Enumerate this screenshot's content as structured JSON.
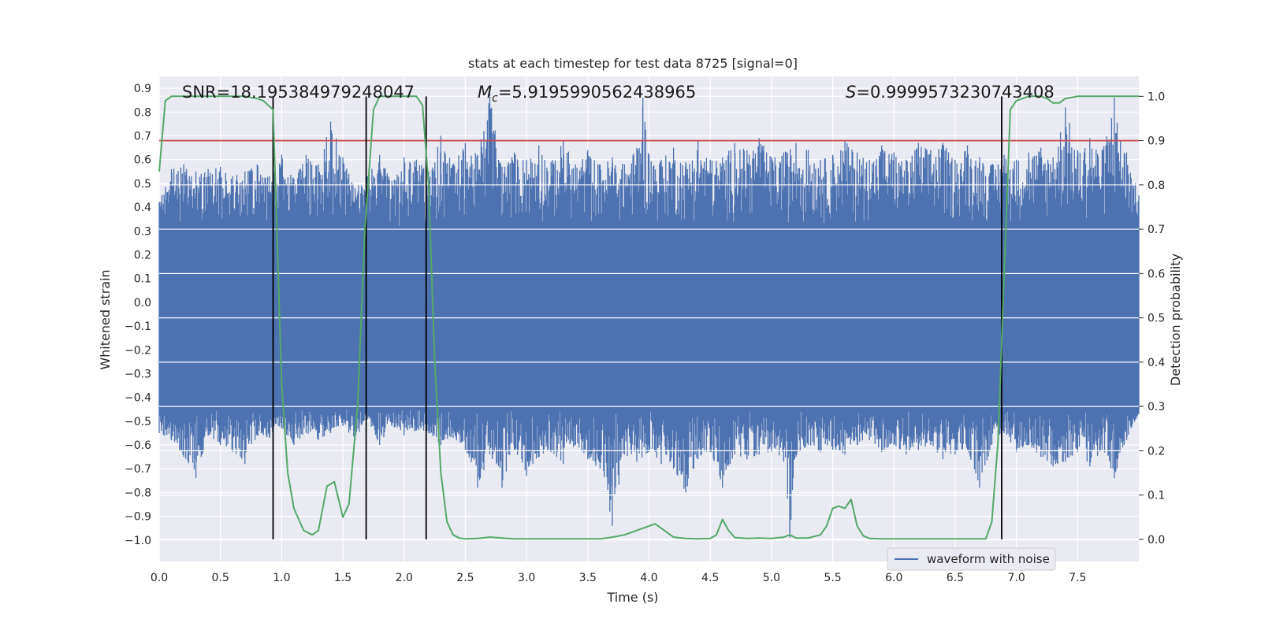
{
  "chart_data": {
    "type": "line",
    "title": "stats at each timestep for test data 8725 [signal=0]",
    "xlabel": "Time (s)",
    "ylabel": "Whitened strain",
    "ylabel_right": "Detection probability",
    "xlim": [
      0,
      8.0
    ],
    "ylim": [
      -1.09,
      0.95
    ],
    "ylim_right": [
      -0.05,
      1.045
    ],
    "xticks": [
      0.0,
      0.5,
      1.0,
      1.5,
      2.0,
      2.5,
      3.0,
      3.5,
      4.0,
      4.5,
      5.0,
      5.5,
      6.0,
      6.5,
      7.0,
      7.5
    ],
    "xtick_labels": [
      "0.0",
      "0.5",
      "1.0",
      "1.5",
      "2.0",
      "2.5",
      "3.0",
      "3.5",
      "4.0",
      "4.5",
      "5.0",
      "5.5",
      "6.0",
      "6.5",
      "7.0",
      "7.5"
    ],
    "yticks": [
      -1.0,
      -0.9,
      -0.8,
      -0.7,
      -0.6,
      -0.5,
      -0.4,
      -0.3,
      -0.2,
      -0.1,
      0.0,
      0.1,
      0.2,
      0.3,
      0.4,
      0.5,
      0.6,
      0.7,
      0.8,
      0.9
    ],
    "ytick_labels": [
      "−1.0",
      "−0.9",
      "−0.8",
      "−0.7",
      "−0.6",
      "−0.5",
      "−0.4",
      "−0.3",
      "−0.2",
      "−0.1",
      "0.0",
      "0.1",
      "0.2",
      "0.3",
      "0.4",
      "0.5",
      "0.6",
      "0.7",
      "0.8",
      "0.9"
    ],
    "yticks_right": [
      0.0,
      0.1,
      0.2,
      0.3,
      0.4,
      0.5,
      0.6,
      0.7,
      0.8,
      0.9,
      1.0
    ],
    "ytick_labels_right": [
      "0.0",
      "0.1",
      "0.2",
      "0.3",
      "0.4",
      "0.5",
      "0.6",
      "0.7",
      "0.8",
      "0.9",
      "1.0"
    ],
    "annotations": {
      "snr": "SNR=18.195384979248047",
      "mc_symbol": "M",
      "mc_subscript": "c",
      "mc_value": "=5.9195990562438965",
      "s_symbol": "S",
      "s_value": "=0.9999573230743408"
    },
    "legend": {
      "label": "waveform with noise",
      "placement": "lower-right"
    },
    "threshold_right": 0.9,
    "vertical_lines_x": [
      0.93,
      1.69,
      2.18,
      6.88
    ],
    "waveform": {
      "name": "waveform with noise",
      "envelope_upper": [
        [
          0.0,
          0.42
        ],
        [
          0.1,
          0.56
        ],
        [
          0.2,
          0.58
        ],
        [
          0.3,
          0.55
        ],
        [
          0.4,
          0.56
        ],
        [
          0.5,
          0.57
        ],
        [
          0.6,
          0.53
        ],
        [
          0.7,
          0.55
        ],
        [
          0.8,
          0.58
        ],
        [
          0.9,
          0.53
        ],
        [
          1.0,
          0.62
        ],
        [
          1.1,
          0.52
        ],
        [
          1.2,
          0.62
        ],
        [
          1.3,
          0.58
        ],
        [
          1.4,
          0.76
        ],
        [
          1.5,
          0.61
        ],
        [
          1.6,
          0.48
        ],
        [
          1.7,
          0.53
        ],
        [
          1.8,
          0.62
        ],
        [
          1.9,
          0.51
        ],
        [
          2.0,
          0.61
        ],
        [
          2.1,
          0.6
        ],
        [
          2.2,
          0.55
        ],
        [
          2.3,
          0.7
        ],
        [
          2.4,
          0.58
        ],
        [
          2.5,
          0.67
        ],
        [
          2.6,
          0.62
        ],
        [
          2.7,
          0.88
        ],
        [
          2.8,
          0.57
        ],
        [
          2.9,
          0.63
        ],
        [
          3.0,
          0.6
        ],
        [
          3.1,
          0.66
        ],
        [
          3.2,
          0.59
        ],
        [
          3.3,
          0.68
        ],
        [
          3.4,
          0.58
        ],
        [
          3.5,
          0.64
        ],
        [
          3.6,
          0.58
        ],
        [
          3.7,
          0.61
        ],
        [
          3.8,
          0.58
        ],
        [
          3.9,
          0.65
        ],
        [
          3.95,
          0.86
        ],
        [
          4.0,
          0.62
        ],
        [
          4.1,
          0.6
        ],
        [
          4.2,
          0.65
        ],
        [
          4.3,
          0.59
        ],
        [
          4.4,
          0.68
        ],
        [
          4.5,
          0.6
        ],
        [
          4.6,
          0.61
        ],
        [
          4.7,
          0.67
        ],
        [
          4.8,
          0.64
        ],
        [
          4.9,
          0.69
        ],
        [
          5.0,
          0.61
        ],
        [
          5.1,
          0.63
        ],
        [
          5.2,
          0.67
        ],
        [
          5.3,
          0.64
        ],
        [
          5.4,
          0.6
        ],
        [
          5.5,
          0.62
        ],
        [
          5.6,
          0.68
        ],
        [
          5.7,
          0.63
        ],
        [
          5.8,
          0.6
        ],
        [
          5.9,
          0.66
        ],
        [
          6.0,
          0.63
        ],
        [
          6.1,
          0.6
        ],
        [
          6.2,
          0.67
        ],
        [
          6.3,
          0.64
        ],
        [
          6.4,
          0.67
        ],
        [
          6.5,
          0.6
        ],
        [
          6.6,
          0.66
        ],
        [
          6.7,
          0.61
        ],
        [
          6.8,
          0.58
        ],
        [
          6.9,
          0.62
        ],
        [
          7.0,
          0.6
        ],
        [
          7.1,
          0.63
        ],
        [
          7.2,
          0.65
        ],
        [
          7.3,
          0.61
        ],
        [
          7.4,
          0.82
        ],
        [
          7.5,
          0.64
        ],
        [
          7.6,
          0.69
        ],
        [
          7.7,
          0.64
        ],
        [
          7.8,
          0.86
        ],
        [
          7.85,
          0.68
        ],
        [
          7.9,
          0.63
        ],
        [
          8.0,
          0.45
        ]
      ],
      "envelope_lower": [
        [
          0.0,
          -0.55
        ],
        [
          0.1,
          -0.58
        ],
        [
          0.2,
          -0.65
        ],
        [
          0.3,
          -0.74
        ],
        [
          0.4,
          -0.56
        ],
        [
          0.5,
          -0.6
        ],
        [
          0.6,
          -0.63
        ],
        [
          0.7,
          -0.68
        ],
        [
          0.8,
          -0.56
        ],
        [
          0.9,
          -0.57
        ],
        [
          1.0,
          -0.53
        ],
        [
          1.1,
          -0.6
        ],
        [
          1.2,
          -0.55
        ],
        [
          1.3,
          -0.58
        ],
        [
          1.4,
          -0.55
        ],
        [
          1.5,
          -0.52
        ],
        [
          1.6,
          -0.58
        ],
        [
          1.7,
          -0.49
        ],
        [
          1.8,
          -0.6
        ],
        [
          1.9,
          -0.52
        ],
        [
          2.0,
          -0.56
        ],
        [
          2.1,
          -0.54
        ],
        [
          2.2,
          -0.55
        ],
        [
          2.3,
          -0.6
        ],
        [
          2.4,
          -0.57
        ],
        [
          2.5,
          -0.62
        ],
        [
          2.6,
          -0.78
        ],
        [
          2.7,
          -0.64
        ],
        [
          2.8,
          -0.78
        ],
        [
          2.9,
          -0.62
        ],
        [
          3.0,
          -0.73
        ],
        [
          3.1,
          -0.65
        ],
        [
          3.2,
          -0.63
        ],
        [
          3.3,
          -0.68
        ],
        [
          3.4,
          -0.6
        ],
        [
          3.5,
          -0.66
        ],
        [
          3.6,
          -0.7
        ],
        [
          3.7,
          -0.94
        ],
        [
          3.8,
          -0.64
        ],
        [
          3.9,
          -0.67
        ],
        [
          4.0,
          -0.63
        ],
        [
          4.1,
          -0.68
        ],
        [
          4.2,
          -0.7
        ],
        [
          4.3,
          -0.8
        ],
        [
          4.4,
          -0.66
        ],
        [
          4.5,
          -0.63
        ],
        [
          4.6,
          -0.78
        ],
        [
          4.7,
          -0.64
        ],
        [
          4.8,
          -0.66
        ],
        [
          4.9,
          -0.64
        ],
        [
          5.0,
          -0.63
        ],
        [
          5.1,
          -0.67
        ],
        [
          5.15,
          -0.99
        ],
        [
          5.2,
          -0.65
        ],
        [
          5.3,
          -0.6
        ],
        [
          5.4,
          -0.63
        ],
        [
          5.5,
          -0.62
        ],
        [
          5.6,
          -0.64
        ],
        [
          5.7,
          -0.6
        ],
        [
          5.8,
          -0.58
        ],
        [
          5.9,
          -0.63
        ],
        [
          6.0,
          -0.6
        ],
        [
          6.1,
          -0.64
        ],
        [
          6.2,
          -0.62
        ],
        [
          6.3,
          -0.6
        ],
        [
          6.4,
          -0.66
        ],
        [
          6.5,
          -0.64
        ],
        [
          6.6,
          -0.62
        ],
        [
          6.7,
          -0.78
        ],
        [
          6.8,
          -0.6
        ],
        [
          6.9,
          -0.55
        ],
        [
          7.0,
          -0.63
        ],
        [
          7.1,
          -0.6
        ],
        [
          7.2,
          -0.65
        ],
        [
          7.3,
          -0.69
        ],
        [
          7.4,
          -0.67
        ],
        [
          7.5,
          -0.63
        ],
        [
          7.6,
          -0.69
        ],
        [
          7.7,
          -0.62
        ],
        [
          7.8,
          -0.74
        ],
        [
          7.9,
          -0.58
        ],
        [
          8.0,
          -0.47
        ]
      ],
      "dense_band": [
        -0.45,
        0.32
      ]
    },
    "detection_probability": {
      "name": "detection probability",
      "x": [
        0.0,
        0.05,
        0.1,
        0.2,
        0.3,
        0.4,
        0.5,
        0.6,
        0.7,
        0.8,
        0.85,
        0.93,
        1.0,
        1.05,
        1.1,
        1.18,
        1.25,
        1.3,
        1.37,
        1.43,
        1.5,
        1.55,
        1.62,
        1.68,
        1.75,
        1.8,
        1.9,
        2.0,
        2.1,
        2.15,
        2.2,
        2.25,
        2.3,
        2.35,
        2.4,
        2.45,
        2.5,
        2.6,
        2.7,
        2.8,
        2.9,
        3.0,
        3.2,
        3.4,
        3.6,
        3.7,
        3.8,
        3.9,
        4.0,
        4.05,
        4.1,
        4.2,
        4.3,
        4.4,
        4.5,
        4.55,
        4.6,
        4.65,
        4.7,
        4.8,
        4.9,
        5.0,
        5.1,
        5.15,
        5.2,
        5.3,
        5.4,
        5.45,
        5.5,
        5.55,
        5.6,
        5.65,
        5.7,
        5.75,
        5.8,
        5.9,
        6.0,
        6.2,
        6.4,
        6.6,
        6.75,
        6.8,
        6.85,
        6.9,
        6.95,
        7.0,
        7.1,
        7.2,
        7.25,
        7.3,
        7.35,
        7.4,
        7.5,
        7.6,
        7.7,
        7.8,
        7.9,
        8.0
      ],
      "y": [
        0.83,
        0.99,
        1.0,
        1.0,
        1.0,
        1.0,
        1.0,
        1.0,
        1.0,
        0.995,
        0.99,
        0.97,
        0.35,
        0.15,
        0.07,
        0.02,
        0.01,
        0.02,
        0.12,
        0.13,
        0.05,
        0.08,
        0.3,
        0.7,
        0.97,
        1.0,
        1.0,
        1.0,
        1.0,
        0.98,
        0.8,
        0.4,
        0.15,
        0.04,
        0.01,
        0.003,
        0.001,
        0.002,
        0.005,
        0.003,
        0.001,
        0.001,
        0.001,
        0.001,
        0.001,
        0.005,
        0.01,
        0.02,
        0.03,
        0.035,
        0.025,
        0.005,
        0.002,
        0.001,
        0.002,
        0.01,
        0.045,
        0.02,
        0.004,
        0.002,
        0.003,
        0.002,
        0.005,
        0.01,
        0.003,
        0.003,
        0.01,
        0.03,
        0.07,
        0.075,
        0.07,
        0.09,
        0.03,
        0.008,
        0.002,
        0.001,
        0.001,
        0.001,
        0.001,
        0.001,
        0.001,
        0.04,
        0.22,
        0.6,
        0.97,
        0.99,
        1.0,
        1.0,
        0.995,
        0.985,
        0.985,
        0.995,
        1.0,
        1.0,
        1.0,
        1.0,
        1.0,
        1.0
      ]
    },
    "colors": {
      "waveform": "#4c72b0",
      "probability": "#55a868",
      "threshold": "#c44e52",
      "vertical_lines": "#000000",
      "plot_background": "#eaeaf2",
      "grid": "#ffffff"
    }
  }
}
